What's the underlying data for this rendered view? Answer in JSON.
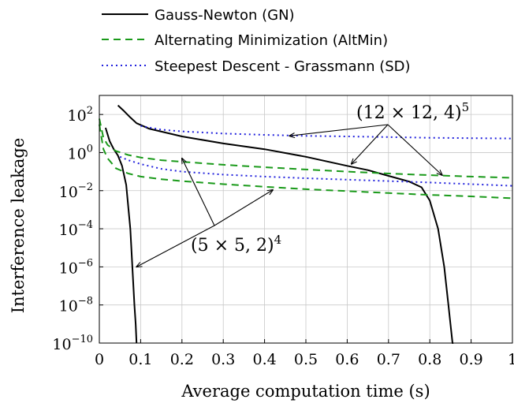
{
  "chart_data": {
    "type": "line",
    "xlabel": "Average computation time (s)",
    "ylabel": "Interference leakage",
    "xlim": [
      0,
      1
    ],
    "ylim": [
      1e-10,
      1000
    ],
    "yscale": "log",
    "grid": true,
    "legend_position": "top-left, above plot",
    "x_ticks": [
      0,
      0.1,
      0.2,
      0.3,
      0.4,
      0.5,
      0.6,
      0.7,
      0.8,
      0.9,
      1
    ],
    "x_tick_labels": [
      "0",
      "0.1",
      "0.2",
      "0.3",
      "0.4",
      "0.5",
      "0.6",
      "0.7",
      "0.8",
      "0.9",
      "1"
    ],
    "y_ticks": [
      {
        "value": 1e-10,
        "base": "10",
        "exp": "−10"
      },
      {
        "value": 1e-08,
        "base": "10",
        "exp": "−8"
      },
      {
        "value": 1e-06,
        "base": "10",
        "exp": "−6"
      },
      {
        "value": 0.0001,
        "base": "10",
        "exp": "−4"
      },
      {
        "value": 0.01,
        "base": "10",
        "exp": "−2"
      },
      {
        "value": 1,
        "base": "10",
        "exp": "0"
      },
      {
        "value": 100,
        "base": "10",
        "exp": "2"
      }
    ],
    "series": [
      {
        "name": "Gauss-Newton (GN)",
        "color": "#000000",
        "dash": "solid",
        "lines": [
          {
            "x": [
              0.045,
              0.06,
              0.075,
              0.09,
              0.12,
              0.2,
              0.3,
              0.4,
              0.5,
              0.6,
              0.65,
              0.7,
              0.75,
              0.78,
              0.8,
              0.82,
              0.835,
              0.845,
              0.85,
              0.855,
              0.857
            ],
            "y": [
              300,
              150,
              70,
              35,
              18,
              7,
              3,
              1.5,
              0.6,
              0.2,
              0.12,
              0.06,
              0.03,
              0.015,
              0.003,
              0.0001,
              1e-06,
              1e-08,
              1e-09,
              1e-10,
              1e-10
            ]
          },
          {
            "x": [
              0.015,
              0.025,
              0.035,
              0.045,
              0.055,
              0.065,
              0.075,
              0.08,
              0.085,
              0.088,
              0.09
            ],
            "y": [
              20,
              4,
              1.5,
              0.7,
              0.2,
              0.02,
              0.0001,
              1e-06,
              1e-08,
              1e-09,
              1e-10
            ]
          }
        ]
      },
      {
        "name": "Alternating Minimization (AltMin)",
        "color": "#1a9a1a",
        "dash": "dashed",
        "lines": [
          {
            "x": [
              0.0,
              0.01,
              0.02,
              0.04,
              0.07,
              0.1,
              0.15,
              0.2,
              0.3,
              0.4,
              0.5,
              0.6,
              0.7,
              0.8,
              0.9,
              1.0
            ],
            "y": [
              60,
              6,
              2.5,
              1.2,
              0.75,
              0.55,
              0.4,
              0.33,
              0.23,
              0.17,
              0.13,
              0.1,
              0.08,
              0.065,
              0.055,
              0.047
            ]
          },
          {
            "x": [
              0.0,
              0.01,
              0.02,
              0.04,
              0.07,
              0.1,
              0.15,
              0.2,
              0.3,
              0.4,
              0.5,
              0.6,
              0.7,
              0.8,
              0.9,
              1.0
            ],
            "y": [
              30,
              1.5,
              0.5,
              0.15,
              0.08,
              0.055,
              0.04,
              0.032,
              0.022,
              0.016,
              0.012,
              0.0095,
              0.0075,
              0.006,
              0.005,
              0.004
            ]
          }
        ]
      },
      {
        "name": "Steepest Descent - Grassmann (SD)",
        "color": "#2222dd",
        "dash": "dotted",
        "lines": [
          {
            "x": [
              0.1,
              0.15,
              0.2,
              0.3,
              0.4,
              0.5,
              0.6,
              0.7,
              0.8,
              0.9,
              1.0
            ],
            "y": [
              25,
              16,
              13,
              10,
              8.5,
              7.5,
              7,
              6.5,
              6,
              5.7,
              5.5
            ]
          },
          {
            "x": [
              0.05,
              0.07,
              0.1,
              0.15,
              0.2,
              0.3,
              0.4,
              0.5,
              0.6,
              0.7,
              0.8,
              0.9,
              1.0
            ],
            "y": [
              0.6,
              0.4,
              0.25,
              0.14,
              0.1,
              0.07,
              0.055,
              0.045,
              0.038,
              0.032,
              0.027,
              0.022,
              0.018
            ]
          }
        ]
      }
    ],
    "annotations": [
      {
        "id": "annot-12x12",
        "base": "(12 × 12, 4)",
        "exp": "5",
        "arrows_to": [
          {
            "x": 0.46,
            "y": 7.5
          },
          {
            "x": 0.61,
            "y": 0.25
          },
          {
            "x": 0.83,
            "y": 0.065
          }
        ]
      },
      {
        "id": "annot-5x5",
        "base": "(5 × 5, 2)",
        "exp": "4",
        "arrows_to": [
          {
            "x": 0.2,
            "y": 0.5
          },
          {
            "x": 0.42,
            "y": 0.011
          },
          {
            "x": 0.09,
            "y": 1e-06
          }
        ]
      }
    ]
  }
}
